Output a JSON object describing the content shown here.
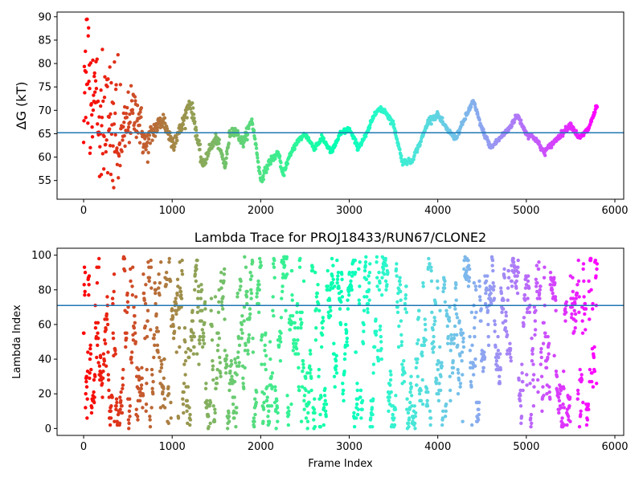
{
  "chart_data": [
    {
      "type": "scatter",
      "title": "",
      "xlabel": "",
      "ylabel": "ΔG (kT)",
      "xlim": [
        -300,
        6100
      ],
      "ylim": [
        51,
        91
      ],
      "xticks": [
        0,
        1000,
        2000,
        3000,
        4000,
        5000,
        6000
      ],
      "yticks": [
        55,
        60,
        65,
        70,
        75,
        80,
        85,
        90
      ],
      "hline": 65.2,
      "hline_color": "#1f77b4",
      "colormap": "rainbow",
      "color_direction": "frame index: red at 0 to violet at the end",
      "keypoints_x": [
        0,
        20,
        50,
        100,
        150,
        200,
        300,
        400,
        500,
        600,
        700,
        800,
        900,
        1000,
        1100,
        1200,
        1250,
        1300,
        1350,
        1400,
        1500,
        1600,
        1650,
        1700,
        1800,
        1900,
        1950,
        2000,
        2100,
        2200,
        2250,
        2300,
        2400,
        2500,
        2600,
        2700,
        2800,
        2900,
        3000,
        3100,
        3200,
        3300,
        3400,
        3500,
        3600,
        3700,
        3800,
        3900,
        4000,
        4100,
        4200,
        4300,
        4400,
        4500,
        4600,
        4700,
        4800,
        4900,
        5000,
        5100,
        5200,
        5300,
        5400,
        5500,
        5600,
        5700,
        5800
      ],
      "keypoints_y": [
        65,
        80,
        85,
        75,
        72,
        65,
        70,
        60,
        68,
        70,
        62,
        66,
        68,
        63,
        66,
        72,
        68,
        62,
        58,
        61,
        64,
        58,
        65,
        66,
        63,
        68,
        62,
        55,
        59,
        61,
        56,
        59,
        63,
        65,
        62,
        64,
        61,
        65,
        66,
        62,
        65,
        70,
        70,
        67,
        59,
        59,
        63,
        68,
        69,
        66,
        64,
        68,
        72,
        66,
        62,
        64,
        66,
        69,
        65,
        64,
        61,
        63,
        65,
        67,
        64,
        66,
        71
      ],
      "noise_scale": [
        6,
        6,
        6,
        6,
        6,
        6,
        5,
        4,
        3,
        3,
        2,
        1,
        1,
        1,
        0.8,
        0.8,
        0.8,
        0.8,
        0.6,
        0.6,
        0.6,
        0.6,
        0.5,
        0.5,
        0.5,
        0.5,
        0.4,
        0.4,
        0.4,
        0.4,
        0.3,
        0.3,
        0.3,
        0.3,
        0.3,
        0.3,
        0.3,
        0.3,
        0.3,
        0.3,
        0.3,
        0.3,
        0.3,
        0.3,
        0.3,
        0.3,
        0.3,
        0.3,
        0.3,
        0.3,
        0.3,
        0.3,
        0.3,
        0.3,
        0.3,
        0.3,
        0.3,
        0.3,
        0.3,
        0.3,
        0.3,
        0.3,
        0.3,
        0.3,
        0.3,
        0.3,
        0.3
      ]
    },
    {
      "type": "scatter",
      "title": "Lambda Trace for PROJ18433/RUN67/CLONE2",
      "xlabel": "Frame Index",
      "ylabel": "Lambda Index",
      "xlim": [
        -300,
        6100
      ],
      "ylim": [
        -4,
        104
      ],
      "xticks": [
        0,
        1000,
        2000,
        3000,
        4000,
        5000,
        6000
      ],
      "yticks": [
        0,
        20,
        40,
        60,
        80,
        100
      ],
      "hline": 71,
      "hline_color": "#1f77b4",
      "colormap": "rainbow",
      "color_direction": "frame index: red at 0 to violet at the end",
      "n_frames": 5800,
      "lambda_range": [
        0,
        99
      ]
    }
  ]
}
